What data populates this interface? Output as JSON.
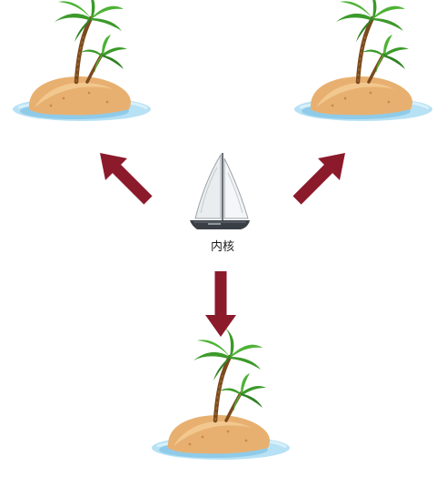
{
  "diagram": {
    "center_label": "内核",
    "nodes": [
      {
        "id": "island-top-left",
        "kind": "island"
      },
      {
        "id": "island-top-right",
        "kind": "island"
      },
      {
        "id": "island-bottom",
        "kind": "island"
      },
      {
        "id": "kernel-boat",
        "kind": "sailboat",
        "label": "内核"
      }
    ],
    "edges": [
      {
        "from": "kernel-boat",
        "to": "island-top-left"
      },
      {
        "from": "kernel-boat",
        "to": "island-top-right"
      },
      {
        "from": "kernel-boat",
        "to": "island-bottom"
      }
    ]
  },
  "colors": {
    "arrow": "#8b1a2b",
    "water": "#9ed4ee",
    "sand": "#e8b070",
    "leaf": "#3c9a2a",
    "trunk": "#7a4a1e",
    "sail": "#e9edef",
    "hull": "#3a3f45"
  }
}
